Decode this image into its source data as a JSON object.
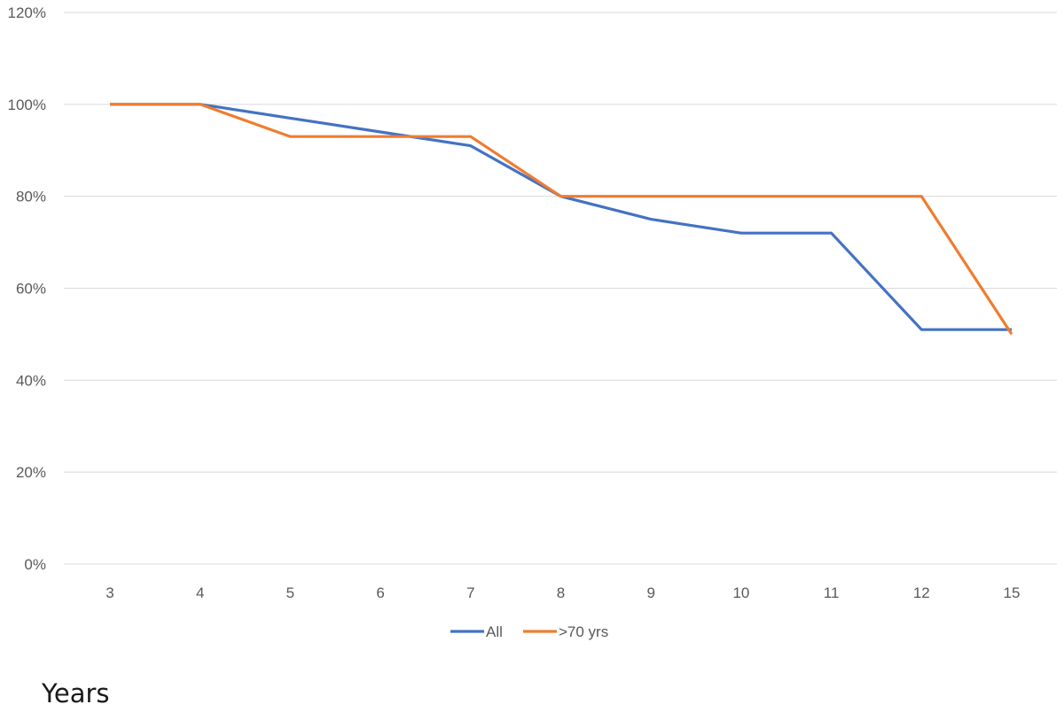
{
  "chart_data": {
    "type": "line",
    "title": "",
    "xlabel": "Years",
    "ylabel": "",
    "categories": [
      "3",
      "4",
      "5",
      "6",
      "7",
      "8",
      "9",
      "10",
      "11",
      "12",
      "15"
    ],
    "y_ticks": [
      "0%",
      "20%",
      "40%",
      "60%",
      "80%",
      "100%",
      "120%"
    ],
    "y_tick_values": [
      0,
      20,
      40,
      60,
      80,
      100,
      120
    ],
    "ylim": [
      0,
      120
    ],
    "grid": "horizontal",
    "legend_position": "bottom",
    "series": [
      {
        "name": "All",
        "color": "#4472C4",
        "values": [
          100,
          100,
          97,
          94,
          91,
          80,
          75,
          72,
          72,
          51,
          51
        ]
      },
      {
        "name": ">70 yrs",
        "color": "#ED7D31",
        "values": [
          100,
          100,
          93,
          93,
          93,
          80,
          80,
          80,
          80,
          80,
          50
        ]
      }
    ]
  }
}
